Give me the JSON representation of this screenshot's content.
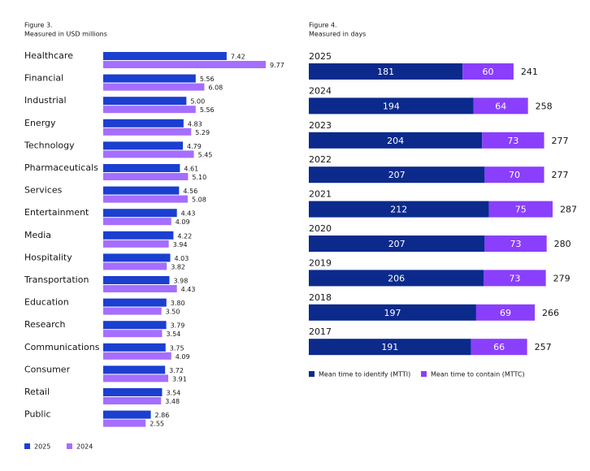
{
  "chart_data": [
    {
      "type": "grouped-hbar",
      "title": "Figure 3.",
      "subtitle": "Measured in USD millions",
      "categories": [
        "Healthcare",
        "Financial",
        "Industrial",
        "Energy",
        "Technology",
        "Pharmaceuticals",
        "Services",
        "Entertainment",
        "Media",
        "Hospitality",
        "Transportation",
        "Education",
        "Research",
        "Communications",
        "Consumer",
        "Retail",
        "Public"
      ],
      "series": [
        {
          "name": "2025",
          "color": "#1b3fd0",
          "values": [
            7.42,
            5.56,
            5,
            4.83,
            4.79,
            4.61,
            4.56,
            4.43,
            4.22,
            4.03,
            3.98,
            3.8,
            3.79,
            3.75,
            3.72,
            3.54,
            2.86
          ],
          "value_labels": [
            "7.42",
            "5.56",
            "5.00",
            "4.83",
            "4.79",
            "4.61",
            "4.56",
            "4.43",
            "4.22",
            "4.03",
            "3.98",
            "3.80",
            "3.79",
            "3.75",
            "3.72",
            "3.54",
            "2.86"
          ]
        },
        {
          "name": "2024",
          "color": "#a56eff",
          "values": [
            9.77,
            6.08,
            5.56,
            5.29,
            5.45,
            5.1,
            5.08,
            4.09,
            3.94,
            3.82,
            4.43,
            3.5,
            3.54,
            4.09,
            3.91,
            3.48,
            2.55
          ],
          "value_labels": [
            "9.77",
            "6.08",
            "5.56",
            "5.29",
            "5.45",
            "5.10",
            "5.08",
            "4.09",
            "3.94",
            "3.82",
            "4.43",
            "3.50",
            "3.54",
            "4.09",
            "3.91",
            "3.48",
            "2.55"
          ]
        }
      ]
    },
    {
      "type": "stacked-hbar",
      "title": "Figure 4.",
      "subtitle": "Measured in days",
      "categories": [
        "2025",
        "2024",
        "2023",
        "2022",
        "2021",
        "2020",
        "2019",
        "2018",
        "2017"
      ],
      "series": [
        {
          "name": "Mean time to identify (MTTI)",
          "color": "#0b2a8c",
          "values": [
            181,
            194,
            204,
            207,
            212,
            207,
            206,
            197,
            191
          ]
        },
        {
          "name": "Mean time to contain (MTTC)",
          "color": "#8a3ffc",
          "values": [
            60,
            64,
            73,
            70,
            75,
            73,
            73,
            69,
            66
          ]
        }
      ],
      "totals": [
        241,
        258,
        277,
        277,
        287,
        280,
        279,
        266,
        257
      ]
    }
  ]
}
